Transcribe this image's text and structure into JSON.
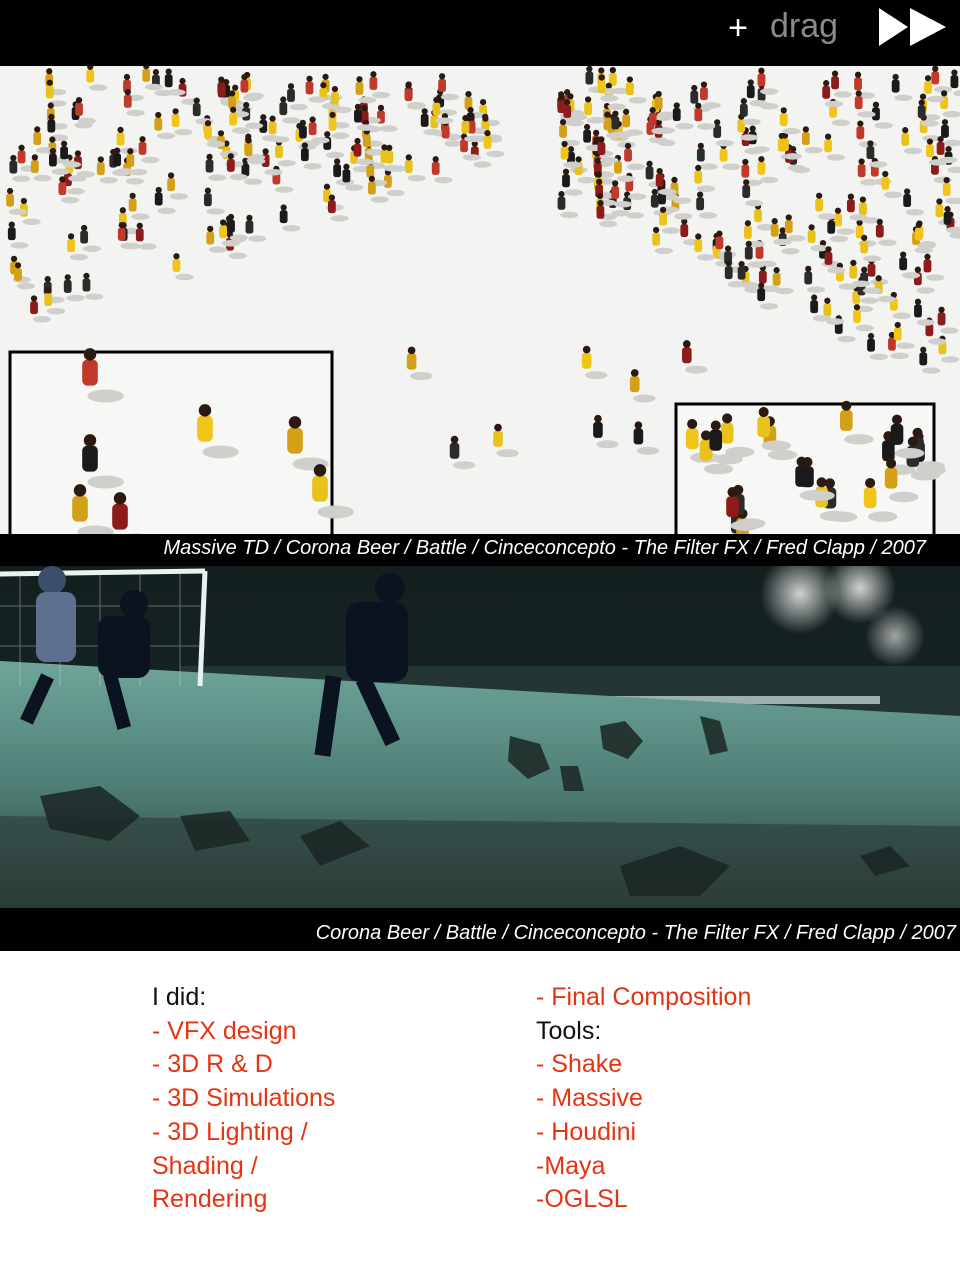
{
  "toolbar": {
    "plus_label": "+",
    "drag_label": "drag",
    "forward_icon": "fast-forward-icon"
  },
  "captions": {
    "top": "Massive TD / Corona Beer / Battle /  Cinceconcepto - The Filter FX  /  Fred Clapp /  2007",
    "bottom": "Corona Beer / Battle /  Cinceconcepto - The Filter FX  /  Fred Clapp /  2007"
  },
  "did": {
    "heading": "I did:",
    "items": [
      "- VFX design",
      "- 3D R & D",
      "- 3D Simulations",
      "- 3D  Lighting /",
      "Shading /",
      "Rendering",
      "- Final Composition"
    ]
  },
  "tools": {
    "heading": "Tools:",
    "items": [
      "- Shake",
      "- Massive",
      "- Houdini",
      "-Maya",
      "-OGLSL"
    ]
  },
  "colors": {
    "accent_red": "#e63312",
    "bar_black": "#000000",
    "drag_gray": "#8a8a8a"
  }
}
